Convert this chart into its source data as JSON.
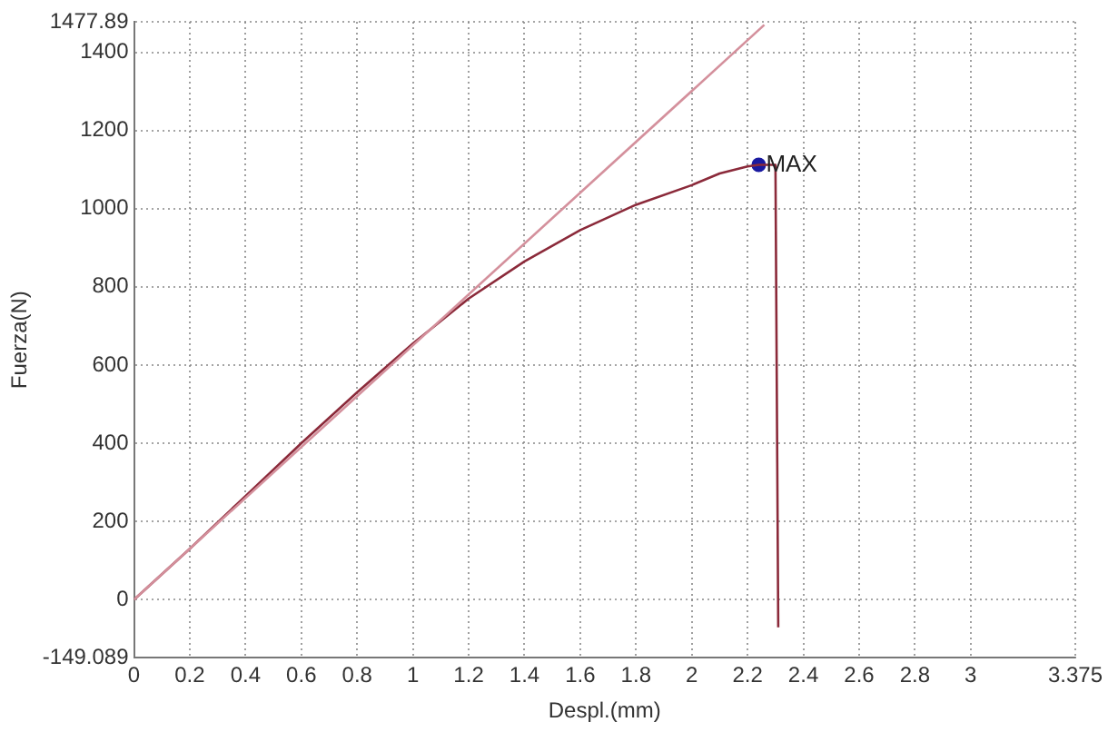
{
  "chart_data": {
    "type": "line",
    "xlabel": "Despl.(mm)",
    "ylabel": "Fuerza(N)",
    "xlim": [
      0,
      3.375
    ],
    "ylim": [
      -149.089,
      1477.89
    ],
    "xticks": [
      0,
      0.2,
      0.4,
      0.6,
      0.8,
      1,
      1.2,
      1.4,
      1.6,
      1.8,
      2,
      2.2,
      2.4,
      2.6,
      2.8,
      3,
      3.375
    ],
    "yticks": [
      -149.089,
      0,
      200,
      400,
      600,
      800,
      1000,
      1200,
      1400,
      1477.89
    ],
    "grid": true,
    "legend": false,
    "marker": "none",
    "line_style": "solid",
    "series": [
      {
        "color": "#d4909c",
        "x": [
          0,
          2.26
        ],
        "values": [
          0,
          1470
        ]
      },
      {
        "color": "#8b2a3a",
        "x": [
          0,
          0.2,
          0.4,
          0.6,
          0.8,
          1.0,
          1.2,
          1.4,
          1.6,
          1.8,
          2.0,
          2.1,
          2.2,
          2.24,
          2.3,
          2.31
        ],
        "values": [
          0,
          130,
          265,
          400,
          530,
          655,
          770,
          865,
          945,
          1010,
          1060,
          1090,
          1108,
          1112,
          1112,
          -71
        ]
      },
      {
        "type": "scatter",
        "color": "#1a1aa0",
        "marker": "circle",
        "x": [
          2.24
        ],
        "values": [
          1112
        ]
      }
    ],
    "annotations": [
      {
        "text": "MAX",
        "x": 2.24,
        "y": 1112
      }
    ]
  }
}
